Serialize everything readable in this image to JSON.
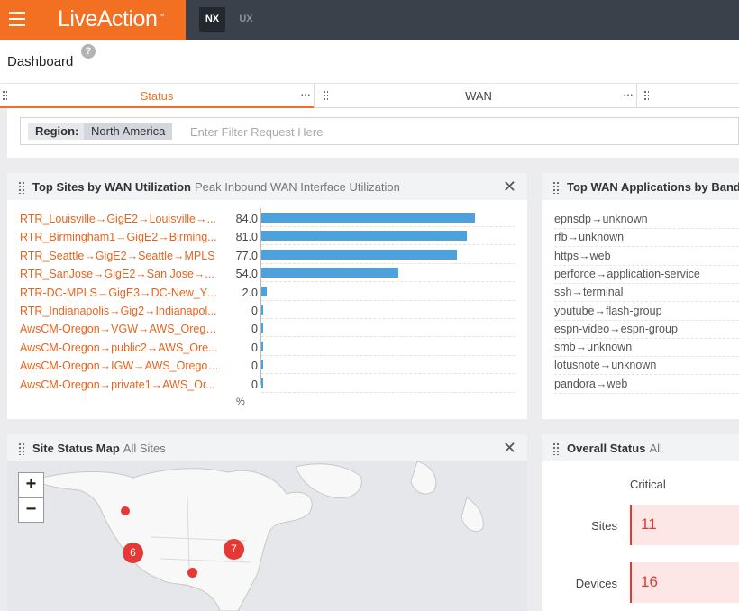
{
  "topbar": {
    "logo": "LiveAction",
    "logo_tm": "™",
    "modes": [
      {
        "label": "NX"
      },
      {
        "label": "UX"
      }
    ]
  },
  "dashboard": {
    "title": "Dashboard",
    "help": "?"
  },
  "tabs": [
    {
      "label": "Status",
      "more": "···"
    },
    {
      "label": "WAN",
      "more": "···"
    }
  ],
  "filter": {
    "region_label": "Region:",
    "region_value": "North America",
    "placeholder": "Enter Filter Request Here"
  },
  "top_sites": {
    "title": "Top Sites by WAN Utilization",
    "subtitle": "Peak Inbound WAN Interface Utilization",
    "close": "✕",
    "unit": "%",
    "rows": [
      {
        "name": "RTR_Louisville→GigE2→Louisville→...",
        "value": "84.0"
      },
      {
        "name": "RTR_Birmingham1→GigE2→Birming...",
        "value": "81.0"
      },
      {
        "name": "RTR_Seattle→GigE2→Seattle→MPLS",
        "value": "77.0"
      },
      {
        "name": "RTR_SanJose→GigE2→San Jose→...",
        "value": "54.0"
      },
      {
        "name": "RTR-DC-MPLS→GigE3→DC-New_Yor...",
        "value": "2.0"
      },
      {
        "name": "RTR_Indianapolis→Gig2→Indianapol...",
        "value": "0"
      },
      {
        "name": "AwsCM-Oregon→VGW→AWS_Orego...",
        "value": "0"
      },
      {
        "name": "AwsCM-Oregon→public2→AWS_Ore...",
        "value": "0"
      },
      {
        "name": "AwsCM-Oregon→IGW→AWS_Oregon...",
        "value": "0"
      },
      {
        "name": "AwsCM-Oregon→private1→AWS_Or...",
        "value": "0"
      }
    ]
  },
  "chart_data": {
    "type": "bar",
    "categories": [
      "RTR_Louisville→GigE2→Louisville→...",
      "RTR_Birmingham1→GigE2→Birming...",
      "RTR_Seattle→GigE2→Seattle→MPLS",
      "RTR_SanJose→GigE2→San Jose→...",
      "RTR-DC-MPLS→GigE3→DC-New_Yor...",
      "RTR_Indianapolis→Gig2→Indianapol...",
      "AwsCM-Oregon→VGW→AWS_Orego...",
      "AwsCM-Oregon→public2→AWS_Ore...",
      "AwsCM-Oregon→IGW→AWS_Oregon...",
      "AwsCM-Oregon→private1→AWS_Or..."
    ],
    "values": [
      84.0,
      81.0,
      77.0,
      54.0,
      2.0,
      0,
      0,
      0,
      0,
      0
    ],
    "xlim": [
      0,
      100
    ],
    "xlabel": "%",
    "orientation": "horizontal"
  },
  "top_apps": {
    "title": "Top WAN Applications by Bandwi",
    "rows": [
      "epnsdp→unknown",
      "rfb→unknown",
      "https→web",
      "perforce→application-service",
      "ssh→terminal",
      "youtube→flash-group",
      "espn-video→espn-group",
      "smb→unknown",
      "lotusnote→unknown",
      "pandora→web"
    ]
  },
  "site_map": {
    "title": "Site Status Map",
    "subtitle": "All Sites",
    "close": "✕",
    "zoom_in": "+",
    "zoom_out": "−",
    "clusters": [
      "6",
      "7"
    ]
  },
  "overall_status": {
    "title": "Overall Status",
    "subtitle": "All",
    "column": "Critical",
    "rows": [
      {
        "label": "Sites",
        "value": "11"
      },
      {
        "label": "Devices",
        "value": "16"
      }
    ]
  },
  "colors": {
    "brand": "#f36f21",
    "topbar": "#3a414b",
    "bar": "#4da2dc",
    "critical": "#e53935",
    "critical_bg": "#fde6e6",
    "link": "#e8641e"
  }
}
